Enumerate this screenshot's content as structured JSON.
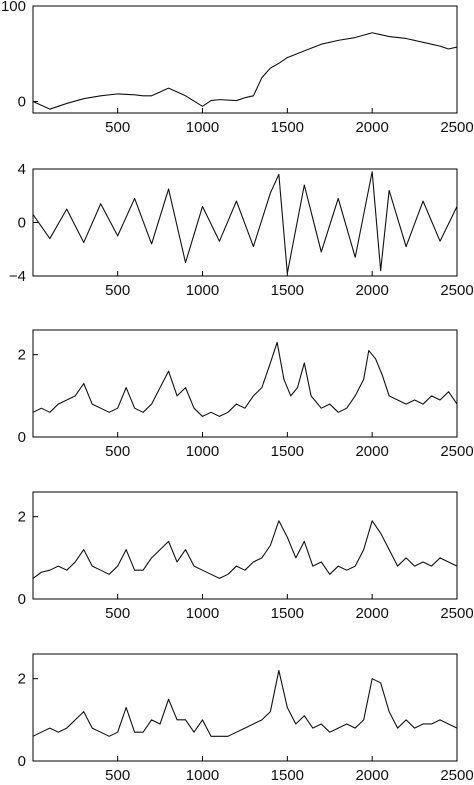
{
  "chart_data": [
    {
      "type": "line",
      "xlim": [
        1,
        2500
      ],
      "ylim": [
        -12,
        100
      ],
      "x_ticks": [
        500,
        1000,
        1500,
        2000,
        2500
      ],
      "y_ticks": [
        0,
        100
      ],
      "x_tick_labels": [
        "500",
        "1000",
        "1500",
        "2000",
        "2500"
      ],
      "y_tick_labels": [
        "0",
        "100"
      ],
      "series": [
        {
          "x": [
            1,
            100,
            150,
            200,
            300,
            400,
            500,
            600,
            650,
            700,
            800,
            900,
            1000,
            1050,
            1100,
            1200,
            1250,
            1300,
            1350,
            1400,
            1450,
            1500,
            1600,
            1700,
            1800,
            1900,
            2000,
            2050,
            2100,
            2200,
            2300,
            2400,
            2450,
            2500
          ],
          "y": [
            0,
            -8,
            -5,
            -2,
            3,
            6,
            8,
            7,
            6,
            6,
            14,
            6,
            -5,
            1,
            2,
            1,
            4,
            6,
            25,
            35,
            40,
            46,
            53,
            60,
            64,
            67,
            72,
            70,
            68,
            66,
            62,
            58,
            55,
            57
          ]
        }
      ]
    },
    {
      "type": "line",
      "xlim": [
        1,
        2500
      ],
      "ylim": [
        -4,
        4
      ],
      "x_ticks": [
        500,
        1000,
        1500,
        2000,
        2500
      ],
      "y_ticks": [
        -4,
        0,
        4
      ],
      "x_tick_labels": [
        "500",
        "1000",
        "1500",
        "2000",
        "2500"
      ],
      "y_tick_labels": [
        "−4",
        "0",
        "4"
      ],
      "series": [
        {
          "x": [
            1,
            100,
            200,
            300,
            400,
            500,
            600,
            700,
            800,
            900,
            1000,
            1100,
            1200,
            1300,
            1400,
            1450,
            1500,
            1600,
            1700,
            1800,
            1900,
            2000,
            2050,
            2100,
            2200,
            2300,
            2400,
            2500
          ],
          "y": [
            0.6,
            -1.2,
            1.0,
            -1.5,
            1.4,
            -1.0,
            1.8,
            -1.6,
            2.5,
            -3.0,
            1.2,
            -1.4,
            1.6,
            -1.8,
            2.2,
            3.6,
            -3.8,
            2.8,
            -2.2,
            1.8,
            -2.6,
            3.8,
            -3.6,
            2.4,
            -1.8,
            1.6,
            -1.4,
            1.2
          ]
        }
      ]
    },
    {
      "type": "line",
      "xlim": [
        1,
        2500
      ],
      "ylim": [
        0,
        2.6
      ],
      "x_ticks": [
        500,
        1000,
        1500,
        2000,
        2500
      ],
      "y_ticks": [
        0,
        2
      ],
      "x_tick_labels": [
        "500",
        "1000",
        "1500",
        "2000",
        "2500"
      ],
      "y_tick_labels": [
        "0",
        "2"
      ],
      "series": [
        {
          "x": [
            1,
            50,
            100,
            150,
            200,
            250,
            300,
            350,
            400,
            450,
            500,
            550,
            600,
            650,
            700,
            750,
            800,
            850,
            900,
            950,
            1000,
            1050,
            1100,
            1150,
            1200,
            1250,
            1300,
            1350,
            1400,
            1440,
            1480,
            1520,
            1560,
            1600,
            1640,
            1700,
            1750,
            1800,
            1850,
            1900,
            1950,
            1980,
            2020,
            2060,
            2100,
            2150,
            2200,
            2250,
            2300,
            2350,
            2400,
            2450,
            2500
          ],
          "y": [
            0.6,
            0.7,
            0.6,
            0.8,
            0.9,
            1.0,
            1.3,
            0.8,
            0.7,
            0.6,
            0.7,
            1.2,
            0.7,
            0.6,
            0.8,
            1.2,
            1.6,
            1.0,
            1.2,
            0.7,
            0.5,
            0.6,
            0.5,
            0.6,
            0.8,
            0.7,
            1.0,
            1.2,
            1.8,
            2.3,
            1.4,
            1.0,
            1.2,
            1.8,
            1.0,
            0.7,
            0.8,
            0.6,
            0.7,
            1.0,
            1.4,
            2.1,
            1.9,
            1.5,
            1.0,
            0.9,
            0.8,
            0.9,
            0.8,
            1.0,
            0.9,
            1.1,
            0.8
          ]
        }
      ]
    },
    {
      "type": "line",
      "xlim": [
        1,
        2500
      ],
      "ylim": [
        0,
        2.6
      ],
      "x_ticks": [
        500,
        1000,
        1500,
        2000,
        2500
      ],
      "y_ticks": [
        0,
        2
      ],
      "x_tick_labels": [
        "500",
        "1000",
        "1500",
        "2000",
        "2500"
      ],
      "y_tick_labels": [
        "0",
        "2"
      ],
      "series": [
        {
          "x": [
            1,
            50,
            100,
            150,
            200,
            250,
            300,
            350,
            400,
            450,
            500,
            550,
            600,
            650,
            700,
            750,
            800,
            850,
            900,
            950,
            1000,
            1050,
            1100,
            1150,
            1200,
            1250,
            1300,
            1350,
            1400,
            1450,
            1500,
            1550,
            1600,
            1650,
            1700,
            1750,
            1800,
            1850,
            1900,
            1950,
            2000,
            2050,
            2100,
            2150,
            2200,
            2250,
            2300,
            2350,
            2400,
            2450,
            2500
          ],
          "y": [
            0.5,
            0.65,
            0.7,
            0.8,
            0.7,
            0.9,
            1.2,
            0.8,
            0.7,
            0.6,
            0.8,
            1.2,
            0.7,
            0.7,
            1.0,
            1.2,
            1.4,
            0.9,
            1.2,
            0.8,
            0.7,
            0.6,
            0.5,
            0.6,
            0.8,
            0.7,
            0.9,
            1.0,
            1.3,
            1.9,
            1.5,
            1.0,
            1.4,
            0.8,
            0.9,
            0.6,
            0.8,
            0.7,
            0.8,
            1.2,
            1.9,
            1.6,
            1.2,
            0.8,
            1.0,
            0.8,
            0.9,
            0.8,
            1.0,
            0.9,
            0.8
          ]
        }
      ]
    },
    {
      "type": "line",
      "xlim": [
        1,
        2500
      ],
      "ylim": [
        0,
        2.6
      ],
      "x_ticks": [
        500,
        1000,
        1500,
        2000,
        2500
      ],
      "y_ticks": [
        0,
        2
      ],
      "x_tick_labels": [
        "500",
        "1000",
        "1500",
        "2000",
        "2500"
      ],
      "y_tick_labels": [
        "0",
        "2"
      ],
      "series": [
        {
          "x": [
            1,
            50,
            100,
            150,
            200,
            250,
            300,
            350,
            400,
            450,
            500,
            550,
            600,
            650,
            700,
            750,
            800,
            850,
            900,
            950,
            1000,
            1050,
            1100,
            1150,
            1200,
            1250,
            1300,
            1350,
            1400,
            1450,
            1500,
            1550,
            1600,
            1650,
            1700,
            1750,
            1800,
            1850,
            1900,
            1950,
            2000,
            2050,
            2100,
            2150,
            2200,
            2250,
            2300,
            2350,
            2400,
            2450,
            2500
          ],
          "y": [
            0.6,
            0.7,
            0.8,
            0.7,
            0.8,
            1.0,
            1.2,
            0.8,
            0.7,
            0.6,
            0.7,
            1.3,
            0.7,
            0.7,
            1.0,
            0.9,
            1.5,
            1.0,
            1.0,
            0.7,
            1.0,
            0.6,
            0.6,
            0.6,
            0.7,
            0.8,
            0.9,
            1.0,
            1.2,
            2.2,
            1.3,
            0.9,
            1.1,
            0.8,
            0.9,
            0.7,
            0.8,
            0.9,
            0.8,
            1.0,
            2.0,
            1.9,
            1.2,
            0.8,
            1.0,
            0.8,
            0.9,
            0.9,
            1.0,
            0.9,
            0.8
          ]
        }
      ]
    }
  ]
}
